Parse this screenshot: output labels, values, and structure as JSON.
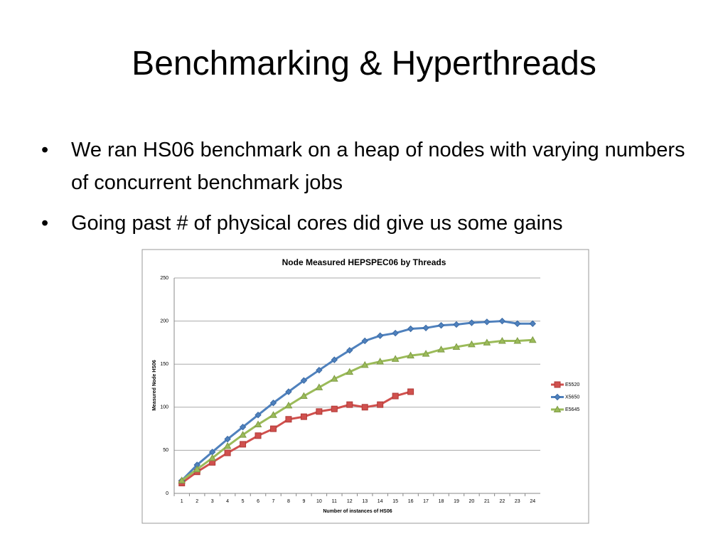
{
  "title": "Benchmarking & Hyperthreads",
  "bullets": [
    "We ran HS06 benchmark on a heap of nodes with varying numbers of concurrent benchmark jobs",
    "Going past # of physical cores did give us some gains"
  ],
  "chart_data": {
    "type": "line",
    "title": "Node Measured HEPSPEC06 by Threads",
    "x_label": "Number of instances of HS06",
    "y_label": "Measured Node HS06",
    "categories": [
      1,
      2,
      3,
      4,
      5,
      6,
      7,
      8,
      9,
      10,
      11,
      12,
      13,
      14,
      15,
      16,
      17,
      18,
      19,
      20,
      21,
      22,
      23,
      24
    ],
    "series": [
      {
        "name": "E5520",
        "color": "#d0504d",
        "marker": "square",
        "values": [
          12,
          25,
          36,
          47,
          57,
          67,
          75,
          86,
          89,
          95,
          98,
          103,
          100,
          103,
          113,
          118,
          null,
          null,
          null,
          null,
          null,
          null,
          null,
          null
        ]
      },
      {
        "name": "X5650",
        "color": "#4f81bd",
        "marker": "diamond",
        "values": [
          15,
          33,
          48,
          63,
          77,
          91,
          105,
          118,
          131,
          143,
          155,
          166,
          177,
          183,
          186,
          191,
          192,
          195,
          196,
          198,
          199,
          200,
          197,
          197
        ]
      },
      {
        "name": "E5645",
        "color": "#9bbb59",
        "marker": "triangle",
        "values": [
          15,
          28,
          41,
          55,
          68,
          80,
          91,
          102,
          113,
          123,
          133,
          141,
          149,
          153,
          156,
          160,
          162,
          167,
          170,
          173,
          175,
          177,
          177,
          178
        ]
      }
    ],
    "ylim": [
      0,
      250
    ],
    "yticks": [
      0,
      50,
      100,
      150,
      200,
      250
    ],
    "grid": true,
    "legend": "right"
  }
}
